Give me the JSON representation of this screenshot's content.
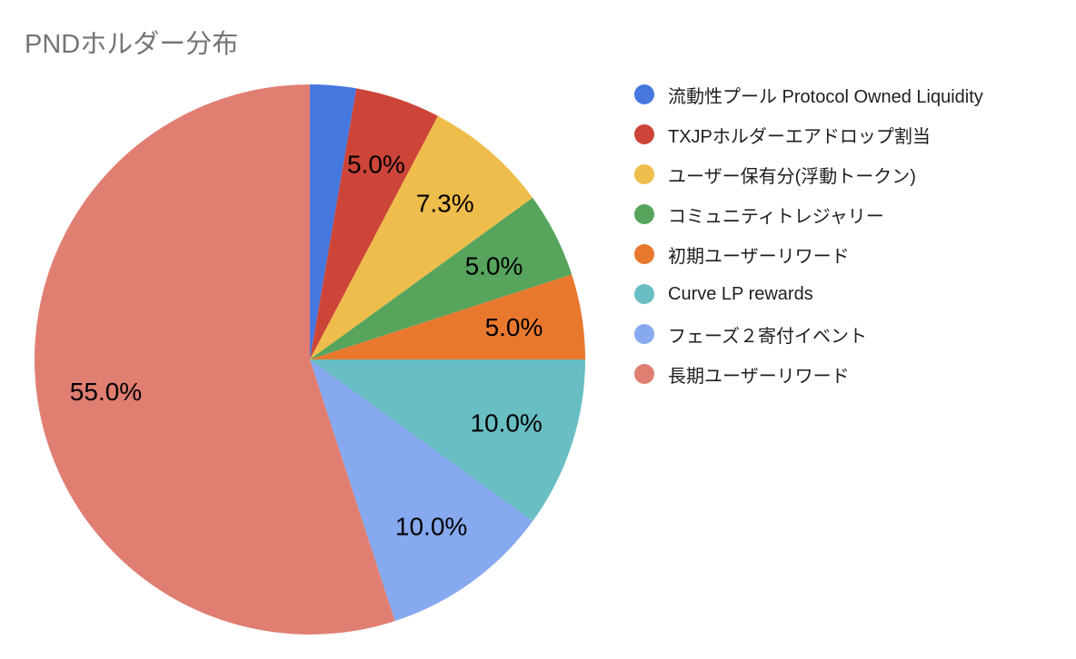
{
  "chart_data": {
    "type": "pie",
    "title": "PNDホルダー分布",
    "title_color": "#757575",
    "label_color": "#000000",
    "legend_position": "right",
    "start_angle_deg": 0,
    "direction": "clockwise",
    "slices": [
      {
        "label": "流動性プール Protocol Owned Liquidity",
        "value": 2.7,
        "pct_label": "",
        "color": "#4677DF"
      },
      {
        "label": "TXJPホルダーエアドロップ割当",
        "value": 5.0,
        "pct_label": "5.0%",
        "color": "#CC4538"
      },
      {
        "label": "ユーザー保有分(浮動トークン)",
        "value": 7.3,
        "pct_label": "7.3%",
        "color": "#EFBD4C"
      },
      {
        "label": "コミュニティトレジャリー",
        "value": 5.0,
        "pct_label": "5.0%",
        "color": "#57A45C"
      },
      {
        "label": "初期ユーザーリワード",
        "value": 5.0,
        "pct_label": "5.0%",
        "color": "#E9782F"
      },
      {
        "label": "Curve LP rewards",
        "value": 10.0,
        "pct_label": "10.0%",
        "color": "#68BEC3"
      },
      {
        "label": "フェーズ２寄付イベント",
        "value": 10.0,
        "pct_label": "10.0%",
        "color": "#86A9EF"
      },
      {
        "label": "長期ユーザーリワード",
        "value": 55.0,
        "pct_label": "55.0%",
        "color": "#E07E72"
      }
    ]
  }
}
